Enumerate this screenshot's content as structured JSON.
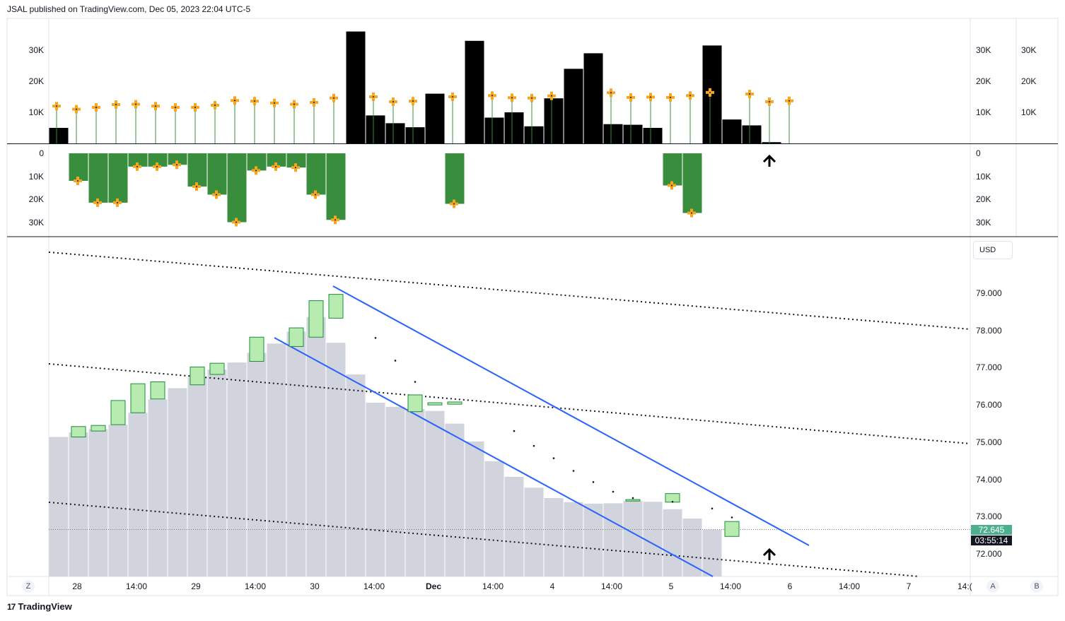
{
  "header": {
    "text": "JSAL published on TradingView.com, Dec 05, 2023 22:04 UTC-5"
  },
  "footer": {
    "logo": "17",
    "brand": "TradingView"
  },
  "corner_buttons": {
    "left": "Z",
    "a": "A",
    "b": "B"
  },
  "price_axis": {
    "currency": "USD",
    "labels": [
      "79.000",
      "78.000",
      "77.000",
      "76.000",
      "75.000",
      "74.000",
      "73.000",
      "72.000"
    ],
    "last_price": "72.645",
    "countdown": "03:55:14"
  },
  "volume_axis": {
    "labels": [
      "30K",
      "20K",
      "10K"
    ]
  },
  "lower_axis": {
    "labels": [
      "0",
      "10K",
      "20K",
      "30K"
    ]
  },
  "time_axis": {
    "labels": [
      "28",
      "14:00",
      "29",
      "14:00",
      "30",
      "14:00",
      "Dec",
      "14:00",
      "4",
      "14:00",
      "5",
      "14:00",
      "6",
      "14:00",
      "7",
      "14:("
    ]
  },
  "colors": {
    "price_bar": "#d1d4dc",
    "candle_fill": "#b7ebb0",
    "candle_border": "#1e8c3e",
    "volume_bar": "#000000",
    "lower_bar": "#388e3c",
    "marker": "#f5a623",
    "trendline": "#2962ff",
    "stem": "#388e3c"
  },
  "chart_data": [
    {
      "type": "bar",
      "title": "",
      "price_bars": [
        75.12,
        75.24,
        75.33,
        75.45,
        75.77,
        76.13,
        76.43,
        76.72,
        76.93,
        77.12,
        77.38,
        77.63,
        77.95,
        78.34,
        77.65,
        76.8,
        76.04,
        75.93,
        75.87,
        75.82,
        75.48,
        75.0,
        74.47,
        74.05,
        73.76,
        73.48,
        73.37,
        73.33,
        73.34,
        73.4,
        73.38,
        73.18,
        72.93,
        72.63
      ],
      "candles": [
        {
          "i": 1,
          "open": 75.12,
          "close": 75.4
        },
        {
          "i": 2,
          "open": 75.28,
          "close": 75.43
        },
        {
          "i": 3,
          "open": 75.45,
          "close": 76.1
        },
        {
          "i": 4,
          "open": 75.77,
          "close": 76.55
        },
        {
          "i": 5,
          "open": 76.14,
          "close": 76.6
        },
        {
          "i": 7,
          "open": 76.52,
          "close": 77.0
        },
        {
          "i": 8,
          "open": 76.8,
          "close": 77.1
        },
        {
          "i": 10,
          "open": 77.15,
          "close": 77.8
        },
        {
          "i": 12,
          "open": 77.55,
          "close": 78.05
        },
        {
          "i": 13,
          "open": 77.8,
          "close": 78.78
        },
        {
          "i": 14,
          "open": 78.31,
          "close": 78.95
        },
        {
          "i": 18,
          "open": 75.8,
          "close": 76.25
        },
        {
          "i": 19,
          "open": 75.98,
          "close": 76.04
        },
        {
          "i": 20,
          "open": 76.0,
          "close": 76.06
        },
        {
          "i": 29,
          "open": 73.4,
          "close": 73.44
        },
        {
          "i": 31,
          "open": 73.37,
          "close": 73.6
        },
        {
          "i": 34,
          "open": 72.45,
          "close": 72.85
        }
      ],
      "dots": [
        {
          "i": 16,
          "v": 77.78
        },
        {
          "i": 17,
          "v": 77.17
        },
        {
          "i": 18,
          "v": 76.6
        },
        {
          "i": 23,
          "v": 75.28
        },
        {
          "i": 24,
          "v": 74.88
        },
        {
          "i": 25,
          "v": 74.55
        },
        {
          "i": 26,
          "v": 74.21
        },
        {
          "i": 27,
          "v": 73.91
        },
        {
          "i": 28,
          "v": 73.65
        },
        {
          "i": 29,
          "v": 73.48
        },
        {
          "i": 31,
          "v": 73.38
        },
        {
          "i": 33,
          "v": 73.2
        },
        {
          "i": 34,
          "v": 72.96
        }
      ],
      "ylim": [
        71.4,
        80.2
      ],
      "last_price": 72.645
    },
    {
      "type": "bar",
      "title": "",
      "volume_bars": [
        {
          "i": 0,
          "v": 5000
        },
        {
          "i": 15,
          "v": 36000
        },
        {
          "i": 16,
          "v": 9000
        },
        {
          "i": 17,
          "v": 6500
        },
        {
          "i": 18,
          "v": 5200
        },
        {
          "i": 19,
          "v": 16000
        },
        {
          "i": 21,
          "v": 33000
        },
        {
          "i": 22,
          "v": 8300
        },
        {
          "i": 23,
          "v": 10000
        },
        {
          "i": 24,
          "v": 5500
        },
        {
          "i": 25,
          "v": 14500
        },
        {
          "i": 26,
          "v": 24000
        },
        {
          "i": 27,
          "v": 29000
        },
        {
          "i": 28,
          "v": 6200
        },
        {
          "i": 29,
          "v": 6000
        },
        {
          "i": 30,
          "v": 5000
        },
        {
          "i": 33,
          "v": 31500
        },
        {
          "i": 34,
          "v": 7700
        },
        {
          "i": 35,
          "v": 5800
        },
        {
          "i": 36,
          "v": 400
        }
      ],
      "markers": [
        {
          "i": 0,
          "v": 12000
        },
        {
          "i": 1,
          "v": 11000
        },
        {
          "i": 2,
          "v": 11600
        },
        {
          "i": 3,
          "v": 12500
        },
        {
          "i": 4,
          "v": 12600
        },
        {
          "i": 5,
          "v": 12000
        },
        {
          "i": 6,
          "v": 11600
        },
        {
          "i": 7,
          "v": 11600
        },
        {
          "i": 8,
          "v": 12300
        },
        {
          "i": 9,
          "v": 13800
        },
        {
          "i": 10,
          "v": 13600
        },
        {
          "i": 11,
          "v": 13000
        },
        {
          "i": 12,
          "v": 12600
        },
        {
          "i": 13,
          "v": 13200
        },
        {
          "i": 14,
          "v": 14600
        },
        {
          "i": 16,
          "v": 15000
        },
        {
          "i": 17,
          "v": 13400
        },
        {
          "i": 18,
          "v": 13600
        },
        {
          "i": 20,
          "v": 15000
        },
        {
          "i": 22,
          "v": 15400
        },
        {
          "i": 23,
          "v": 14700
        },
        {
          "i": 24,
          "v": 14600
        },
        {
          "i": 25,
          "v": 15300
        },
        {
          "i": 28,
          "v": 16300
        },
        {
          "i": 29,
          "v": 14800
        },
        {
          "i": 30,
          "v": 14900
        },
        {
          "i": 31,
          "v": 14800
        },
        {
          "i": 32,
          "v": 15400
        },
        {
          "i": 33,
          "v": 16400
        },
        {
          "i": 35,
          "v": 15900
        },
        {
          "i": 36,
          "v": 13400
        },
        {
          "i": 37,
          "v": 13700
        }
      ],
      "ylim": [
        0,
        36000
      ]
    },
    {
      "type": "bar",
      "title": "",
      "lower_bars": [
        {
          "i": 1,
          "v": 12000
        },
        {
          "i": 2,
          "v": 21500
        },
        {
          "i": 3,
          "v": 21500
        },
        {
          "i": 4,
          "v": 5800
        },
        {
          "i": 5,
          "v": 5800
        },
        {
          "i": 6,
          "v": 5000
        },
        {
          "i": 7,
          "v": 14500
        },
        {
          "i": 8,
          "v": 18000
        },
        {
          "i": 9,
          "v": 30000
        },
        {
          "i": 10,
          "v": 7500
        },
        {
          "i": 11,
          "v": 5800
        },
        {
          "i": 12,
          "v": 6200
        },
        {
          "i": 13,
          "v": 18000
        },
        {
          "i": 14,
          "v": 29000
        },
        {
          "i": 20,
          "v": 22000
        },
        {
          "i": 31,
          "v": 14000
        },
        {
          "i": 32,
          "v": 26000
        }
      ],
      "ylim": [
        0,
        36000
      ]
    }
  ]
}
